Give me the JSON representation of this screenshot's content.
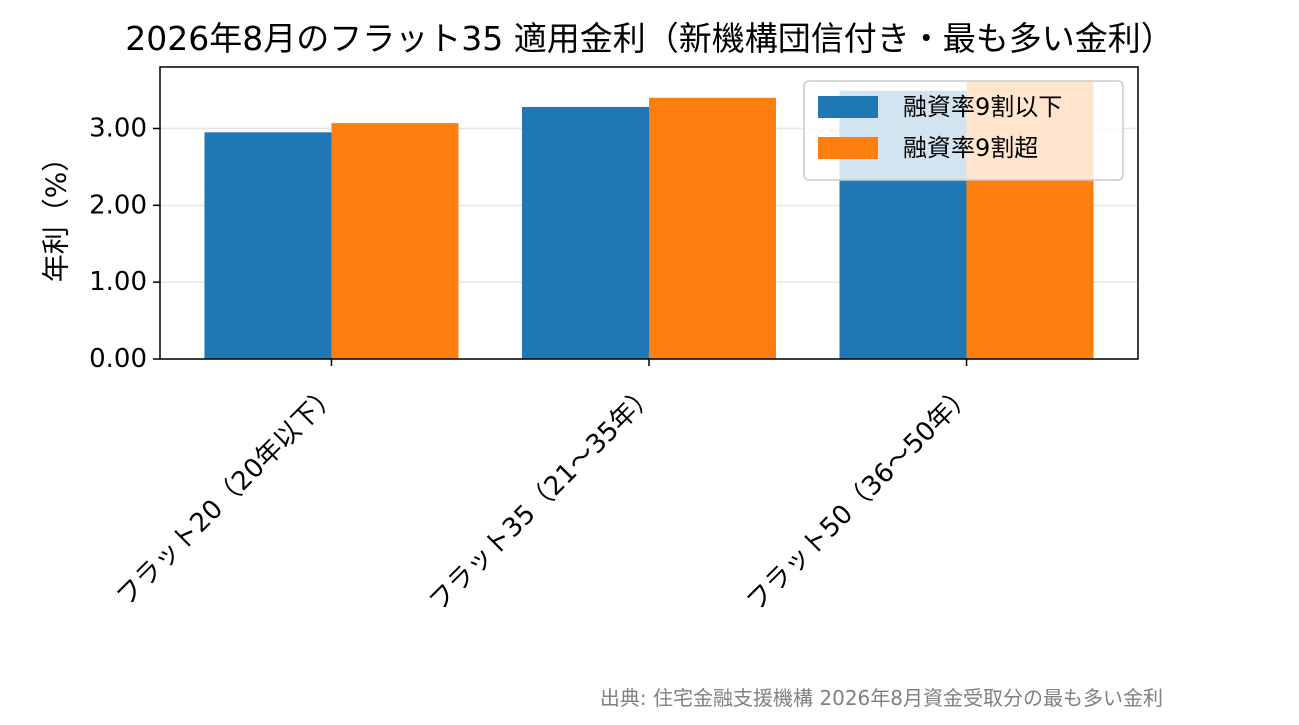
{
  "chart_data": {
    "type": "bar",
    "title": "2026年8月のフラット35 適用金利（新機構団信付き・最も多い金利）",
    "xlabel": "",
    "ylabel": "年利（%）",
    "categories": [
      "フラット20（20年以下）",
      "フラット35（21〜35年）",
      "フラット50（36〜50年）"
    ],
    "series": [
      {
        "name": "融資率9割以下",
        "color": "#1f77b4",
        "values": [
          2.95,
          3.28,
          3.49
        ]
      },
      {
        "name": "融資率9割超",
        "color": "#ff7f0e",
        "values": [
          3.07,
          3.4,
          3.61
        ]
      }
    ],
    "ylim": [
      0,
      3.8
    ],
    "yticks": [
      "0.00",
      "1.00",
      "2.00",
      "3.00"
    ],
    "grid": "y",
    "legend_position": "upper-right",
    "source_note": "出典: 住宅金融支援機構 2026年8月資金受取分の最も多い金利"
  }
}
